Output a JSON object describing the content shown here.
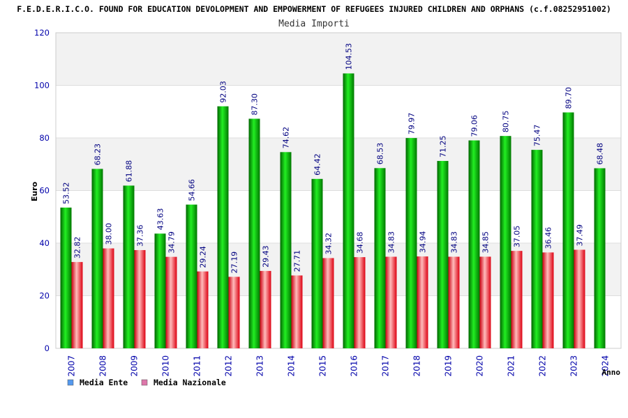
{
  "chart_data": {
    "type": "bar",
    "title": "F.E.D.E.R.I.C.O. FOUND FOR EDUCATION DEVOLOPMENT AND EMPOWERMENT OF REFUGEES INJURED CHILDREN AND ORPHANS (c.f.08252951002)",
    "subtitle": "Media Importi",
    "xlabel": "Anno",
    "ylabel": "Euro",
    "ylim": [
      0,
      120
    ],
    "yticks": [
      0,
      20,
      40,
      60,
      80,
      100,
      120
    ],
    "grid": true,
    "legend_position": "bottom-left",
    "categories": [
      "2007",
      "2008",
      "2009",
      "2010",
      "2011",
      "2012",
      "2013",
      "2014",
      "2015",
      "2016",
      "2017",
      "2018",
      "2019",
      "2020",
      "2021",
      "2022",
      "2023",
      "2024"
    ],
    "series": [
      {
        "name": "Media Ente",
        "bar_color": "#00bb00",
        "legend_color": "#5599ee",
        "values": [
          53.52,
          68.23,
          61.88,
          43.63,
          54.66,
          92.03,
          87.3,
          74.62,
          64.42,
          104.53,
          68.53,
          79.97,
          71.25,
          79.06,
          80.75,
          75.47,
          89.7,
          68.48
        ],
        "labels": [
          "53.52",
          "68.23",
          "61.88",
          "43.63",
          "54.66",
          "92.03",
          "87.30",
          "74.62",
          "64.42",
          "104.53",
          "68.53",
          "79.97",
          "71.25",
          "79.06",
          "80.75",
          "75.47",
          "89.70",
          "68.48"
        ]
      },
      {
        "name": "Media Nazionale",
        "bar_color": "#ee1122",
        "legend_color": "#dd77aa",
        "values": [
          32.82,
          38.0,
          37.36,
          34.79,
          29.24,
          27.19,
          29.43,
          27.71,
          34.32,
          34.68,
          34.83,
          34.94,
          34.83,
          34.85,
          37.05,
          36.46,
          37.49,
          null
        ],
        "labels": [
          "32.82",
          "38.00",
          "37.36",
          "34.79",
          "29.24",
          "27.19",
          "29.43",
          "27.71",
          "34.32",
          "34.68",
          "34.83",
          "34.94",
          "34.83",
          "34.85",
          "37.05",
          "36.46",
          "37.49",
          ""
        ]
      }
    ],
    "colors": {
      "axis_text": "#0000aa",
      "label_text": "#000080",
      "band_fill": "#f2f2f2",
      "grid": "#dddddd"
    }
  }
}
